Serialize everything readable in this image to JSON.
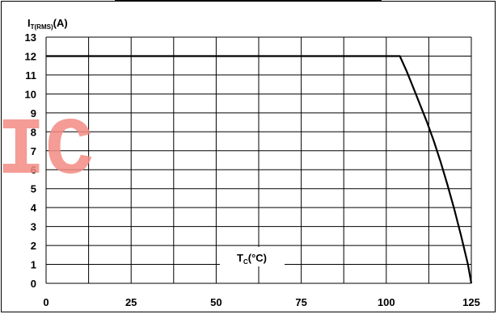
{
  "chart_data": {
    "type": "line",
    "title": "",
    "ylabel_main": "I",
    "ylabel_sub": "T(RMS)",
    "ylabel_unit": "(A)",
    "xlabel_main": "T",
    "xlabel_sub": "C",
    "xlabel_unit": "(°C)",
    "xlim": [
      0,
      125
    ],
    "ylim": [
      0,
      13
    ],
    "x_ticks": [
      0,
      25,
      50,
      75,
      100,
      125
    ],
    "y_ticks": [
      0,
      1,
      2,
      3,
      4,
      5,
      6,
      7,
      8,
      9,
      10,
      11,
      12,
      13
    ],
    "grid": true,
    "series": [
      {
        "x": [
          0,
          104,
          106,
          108,
          110,
          112,
          114,
          116,
          118,
          120,
          122,
          124,
          125
        ],
        "y": [
          12,
          12,
          11.2,
          10.3,
          9.4,
          8.5,
          7.5,
          6.4,
          5.2,
          3.9,
          2.5,
          1.0,
          0
        ]
      }
    ],
    "watermark": "IC",
    "watermark_color": "#f28b82"
  }
}
